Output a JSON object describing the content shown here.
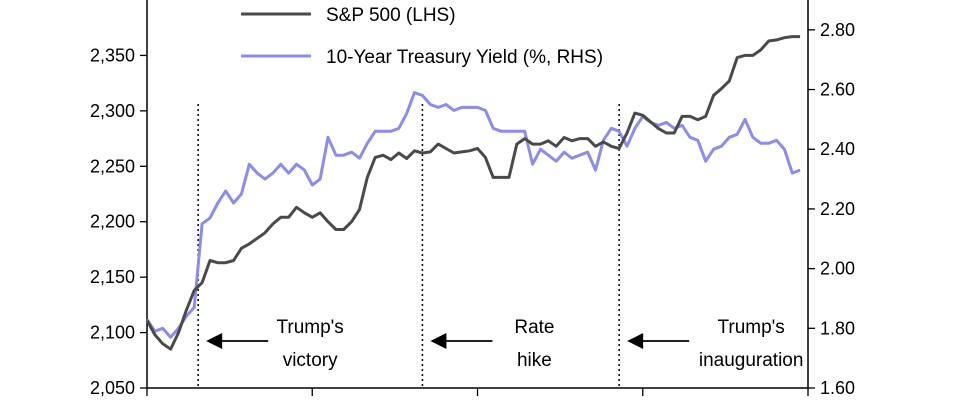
{
  "chart_data": {
    "type": "line",
    "title": "",
    "xlabel": "",
    "ylabel": "",
    "ylim": [
      2050,
      2400
    ],
    "y2lim": [
      1.6,
      2.9
    ],
    "y_ticks": [
      2050,
      2100,
      2150,
      2200,
      2250,
      2300,
      2350
    ],
    "y_tick_labels": [
      "2,050",
      "2,100",
      "2,150",
      "2,200",
      "2,250",
      "2,300",
      "2,350"
    ],
    "y2_ticks": [
      1.6,
      1.8,
      2.0,
      2.2,
      2.4,
      2.6,
      2.8
    ],
    "y2_tick_labels": [
      "1.60",
      "1.80",
      "2.00",
      "2.20",
      "2.40",
      "2.60",
      "2.80"
    ],
    "grid": false,
    "legend_position": "top-center",
    "series": [
      {
        "name": "S&P 500 (LHS)",
        "axis": "left",
        "color": "#4a4a4a",
        "points": [
          [
            0,
            2111
          ],
          [
            1,
            2098
          ],
          [
            2,
            2090
          ],
          [
            3,
            2085
          ],
          [
            4,
            2100
          ],
          [
            5,
            2120
          ],
          [
            6,
            2138
          ],
          [
            7,
            2145
          ],
          [
            8,
            2165
          ],
          [
            9,
            2163
          ],
          [
            10,
            2163
          ],
          [
            11,
            2165
          ],
          [
            12,
            2176
          ],
          [
            13,
            2180
          ],
          [
            14,
            2185
          ],
          [
            15,
            2190
          ],
          [
            16,
            2198
          ],
          [
            17,
            2204
          ],
          [
            18,
            2204
          ],
          [
            19,
            2213
          ],
          [
            20,
            2208
          ],
          [
            21,
            2204
          ],
          [
            22,
            2208
          ],
          [
            23,
            2200
          ],
          [
            24,
            2193
          ],
          [
            25,
            2193
          ],
          [
            26,
            2200
          ],
          [
            27,
            2211
          ],
          [
            28,
            2240
          ],
          [
            29,
            2258
          ],
          [
            30,
            2260
          ],
          [
            31,
            2256
          ],
          [
            32,
            2262
          ],
          [
            33,
            2257
          ],
          [
            34,
            2264
          ],
          [
            35,
            2262
          ],
          [
            36,
            2263
          ],
          [
            37,
            2270
          ],
          [
            38,
            2266
          ],
          [
            39,
            2262
          ],
          [
            40,
            2263
          ],
          [
            41,
            2264
          ],
          [
            42,
            2266
          ],
          [
            43,
            2258
          ],
          [
            44,
            2240
          ],
          [
            45,
            2240
          ],
          [
            46,
            2240
          ],
          [
            47,
            2270
          ],
          [
            48,
            2275
          ],
          [
            49,
            2270
          ],
          [
            50,
            2270
          ],
          [
            51,
            2273
          ],
          [
            52,
            2268
          ],
          [
            53,
            2276
          ],
          [
            54,
            2273
          ],
          [
            55,
            2275
          ],
          [
            56,
            2275
          ],
          [
            57,
            2268
          ],
          [
            58,
            2272
          ],
          [
            59,
            2268
          ],
          [
            60,
            2266
          ],
          [
            61,
            2280
          ],
          [
            62,
            2298
          ],
          [
            63,
            2296
          ],
          [
            64,
            2290
          ],
          [
            65,
            2284
          ],
          [
            66,
            2280
          ],
          [
            67,
            2280
          ],
          [
            68,
            2295
          ],
          [
            69,
            2295
          ],
          [
            70,
            2292
          ],
          [
            71,
            2295
          ],
          [
            72,
            2314
          ],
          [
            73,
            2320
          ],
          [
            74,
            2327
          ],
          [
            75,
            2348
          ],
          [
            76,
            2350
          ],
          [
            77,
            2350
          ],
          [
            78,
            2355
          ],
          [
            79,
            2363
          ],
          [
            80,
            2364
          ],
          [
            81,
            2366
          ],
          [
            82,
            2367
          ],
          [
            83,
            2367
          ]
        ]
      },
      {
        "name": "10-Year Treasury Yield (%, RHS)",
        "axis": "right",
        "color": "#8b8bf0",
        "points": [
          [
            0,
            1.83
          ],
          [
            1,
            1.79
          ],
          [
            2,
            1.8
          ],
          [
            3,
            1.77
          ],
          [
            4,
            1.8
          ],
          [
            5,
            1.84
          ],
          [
            6,
            1.87
          ],
          [
            7,
            2.15
          ],
          [
            8,
            2.17
          ],
          [
            9,
            2.22
          ],
          [
            10,
            2.26
          ],
          [
            11,
            2.22
          ],
          [
            12,
            2.25
          ],
          [
            13,
            2.35
          ],
          [
            14,
            2.32
          ],
          [
            15,
            2.3
          ],
          [
            16,
            2.32
          ],
          [
            17,
            2.35
          ],
          [
            18,
            2.32
          ],
          [
            19,
            2.35
          ],
          [
            20,
            2.33
          ],
          [
            21,
            2.28
          ],
          [
            22,
            2.3
          ],
          [
            23,
            2.44
          ],
          [
            24,
            2.38
          ],
          [
            25,
            2.38
          ],
          [
            26,
            2.39
          ],
          [
            27,
            2.37
          ],
          [
            28,
            2.42
          ],
          [
            29,
            2.46
          ],
          [
            30,
            2.46
          ],
          [
            31,
            2.46
          ],
          [
            32,
            2.47
          ],
          [
            33,
            2.52
          ],
          [
            34,
            2.59
          ],
          [
            35,
            2.58
          ],
          [
            36,
            2.55
          ],
          [
            37,
            2.54
          ],
          [
            38,
            2.55
          ],
          [
            39,
            2.53
          ],
          [
            40,
            2.54
          ],
          [
            41,
            2.54
          ],
          [
            42,
            2.54
          ],
          [
            43,
            2.53
          ],
          [
            44,
            2.47
          ],
          [
            45,
            2.46
          ],
          [
            46,
            2.46
          ],
          [
            47,
            2.46
          ],
          [
            48,
            2.46
          ],
          [
            49,
            2.35
          ],
          [
            50,
            2.4
          ],
          [
            51,
            2.38
          ],
          [
            52,
            2.36
          ],
          [
            53,
            2.39
          ],
          [
            54,
            2.37
          ],
          [
            55,
            2.38
          ],
          [
            56,
            2.39
          ],
          [
            57,
            2.33
          ],
          [
            58,
            2.43
          ],
          [
            59,
            2.47
          ],
          [
            60,
            2.46
          ],
          [
            61,
            2.41
          ],
          [
            62,
            2.47
          ],
          [
            63,
            2.51
          ],
          [
            64,
            2.49
          ],
          [
            65,
            2.48
          ],
          [
            66,
            2.49
          ],
          [
            67,
            2.47
          ],
          [
            68,
            2.48
          ],
          [
            69,
            2.44
          ],
          [
            70,
            2.43
          ],
          [
            71,
            2.36
          ],
          [
            72,
            2.4
          ],
          [
            73,
            2.41
          ],
          [
            74,
            2.44
          ],
          [
            75,
            2.45
          ],
          [
            76,
            2.5
          ],
          [
            77,
            2.44
          ],
          [
            78,
            2.42
          ],
          [
            79,
            2.42
          ],
          [
            80,
            2.43
          ],
          [
            81,
            2.4
          ],
          [
            82,
            2.32
          ],
          [
            83,
            2.33
          ]
        ]
      }
    ],
    "events": [
      {
        "label_lines": [
          "Trump's",
          "victory"
        ],
        "x": 6.5
      },
      {
        "label_lines": [
          "Rate",
          "hike"
        ],
        "x": 35.0
      },
      {
        "label_lines": [
          "Trump's",
          "inauguration"
        ],
        "x": 60.0
      }
    ],
    "x_ticks": [
      0,
      21,
      42,
      63,
      84
    ]
  }
}
